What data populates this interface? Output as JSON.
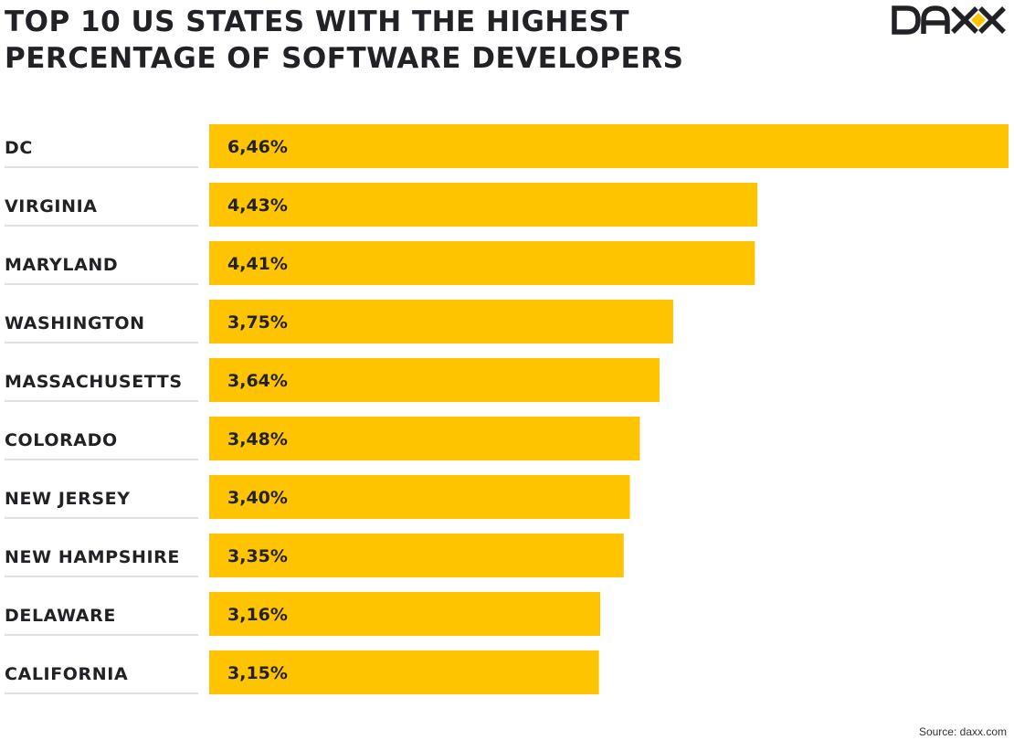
{
  "title_line1": "TOP 10 US STATES WITH THE HIGHEST",
  "title_line2": "PERCENTAGE OF SOFTWARE DEVELOPERS",
  "logo_text": "DAXX",
  "source": "Source: daxx.com",
  "colors": {
    "bar": "#FEC400",
    "text": "#222226",
    "divider": "#E0E0E0"
  },
  "chart_data": {
    "type": "bar",
    "orientation": "horizontal",
    "title": "TOP 10 US STATES WITH THE HIGHEST PERCENTAGE OF SOFTWARE DEVELOPERS",
    "categories": [
      "DC",
      "VIRGINIA",
      "MARYLAND",
      "WASHINGTON",
      "MASSACHUSETTS",
      "COLORADO",
      "NEW JERSEY",
      "NEW HAMPSHIRE",
      "DELAWARE",
      "CALIFORNIA"
    ],
    "values": [
      6.46,
      4.43,
      4.41,
      3.75,
      3.64,
      3.48,
      3.4,
      3.35,
      3.16,
      3.15
    ],
    "value_labels": [
      "6,46%",
      "4,43%",
      "4,41%",
      "3,75%",
      "3,64%",
      "3,48%",
      "3,40%",
      "3,35%",
      "3,16%",
      "3,15%"
    ],
    "unit": "%",
    "xlim": [
      0,
      6.46
    ],
    "grid": false,
    "legend": "none"
  }
}
